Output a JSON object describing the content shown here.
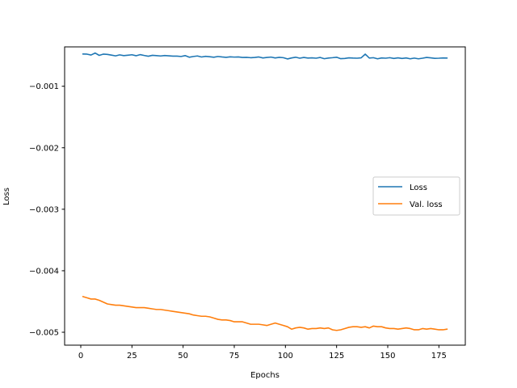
{
  "chart_data": {
    "type": "line",
    "title": "",
    "xlabel": "Epochs",
    "ylabel": "Loss",
    "xlim": [
      -7.9,
      187.9
    ],
    "ylim": [
      -0.00521,
      -0.00036
    ],
    "xticks": [
      0,
      25,
      50,
      75,
      100,
      125,
      150,
      175
    ],
    "xtick_labels": [
      "0",
      "25",
      "50",
      "75",
      "100",
      "125",
      "150",
      "175"
    ],
    "yticks": [
      -0.001,
      -0.002,
      -0.003,
      -0.004,
      -0.005
    ],
    "ytick_labels": [
      "−0.001",
      "−0.002",
      "−0.003",
      "−0.004",
      "−0.005"
    ],
    "grid": false,
    "legend_position": "center-right",
    "series": [
      {
        "name": "Loss",
        "color": "#1f77b4",
        "x": [
          1,
          3,
          5,
          7,
          9,
          11,
          13,
          15,
          17,
          19,
          21,
          23,
          25,
          27,
          29,
          31,
          33,
          35,
          37,
          39,
          41,
          43,
          45,
          47,
          49,
          51,
          53,
          55,
          57,
          59,
          61,
          63,
          65,
          67,
          69,
          71,
          73,
          75,
          77,
          79,
          81,
          83,
          85,
          87,
          89,
          91,
          93,
          95,
          97,
          99,
          101,
          103,
          105,
          107,
          109,
          111,
          113,
          115,
          117,
          119,
          121,
          123,
          125,
          127,
          129,
          131,
          133,
          135,
          137,
          139,
          141,
          143,
          145,
          147,
          149,
          151,
          153,
          155,
          157,
          159,
          161,
          163,
          165,
          167,
          169,
          171,
          173,
          175,
          177,
          179
        ],
        "y": [
          -0.000476,
          -0.000478,
          -0.000492,
          -0.00046,
          -0.000498,
          -0.000478,
          -0.000482,
          -0.000494,
          -0.000506,
          -0.00049,
          -0.000502,
          -0.000495,
          -0.000488,
          -0.000504,
          -0.000486,
          -0.0005,
          -0.000512,
          -0.000497,
          -0.000502,
          -0.000508,
          -0.0005,
          -0.000505,
          -0.00051,
          -0.00051,
          -0.000516,
          -0.000502,
          -0.000528,
          -0.000516,
          -0.000508,
          -0.000524,
          -0.000514,
          -0.00052,
          -0.000528,
          -0.000516,
          -0.000524,
          -0.00053,
          -0.000522,
          -0.000526,
          -0.000524,
          -0.000532,
          -0.00053,
          -0.000536,
          -0.000532,
          -0.000524,
          -0.00054,
          -0.000532,
          -0.000526,
          -0.00054,
          -0.00053,
          -0.000536,
          -0.000556,
          -0.00054,
          -0.000528,
          -0.000544,
          -0.000532,
          -0.000542,
          -0.000538,
          -0.000544,
          -0.000532,
          -0.000552,
          -0.000542,
          -0.000536,
          -0.000528,
          -0.000552,
          -0.000548,
          -0.000538,
          -0.000542,
          -0.000544,
          -0.000538,
          -0.000478,
          -0.000542,
          -0.000536,
          -0.000554,
          -0.00054,
          -0.000544,
          -0.000536,
          -0.000548,
          -0.000538,
          -0.000548,
          -0.00054,
          -0.000554,
          -0.000542,
          -0.000554,
          -0.000544,
          -0.000532,
          -0.000538,
          -0.000546,
          -0.000544,
          -0.00054,
          -0.000542
        ]
      },
      {
        "name": "Val. loss",
        "color": "#ff7f0e",
        "x": [
          1,
          3,
          5,
          7,
          9,
          11,
          13,
          15,
          17,
          19,
          21,
          23,
          25,
          27,
          29,
          31,
          33,
          35,
          37,
          39,
          41,
          43,
          45,
          47,
          49,
          51,
          53,
          55,
          57,
          59,
          61,
          63,
          65,
          67,
          69,
          71,
          73,
          75,
          77,
          79,
          81,
          83,
          85,
          87,
          89,
          91,
          93,
          95,
          97,
          99,
          101,
          103,
          105,
          107,
          109,
          111,
          113,
          115,
          117,
          119,
          121,
          123,
          125,
          127,
          129,
          131,
          133,
          135,
          137,
          139,
          141,
          143,
          145,
          147,
          149,
          151,
          153,
          155,
          157,
          159,
          161,
          163,
          165,
          167,
          169,
          171,
          173,
          175,
          177,
          179
        ],
        "y": [
          -0.00442,
          -0.00444,
          -0.00446,
          -0.00446,
          -0.00448,
          -0.00451,
          -0.00454,
          -0.00455,
          -0.00456,
          -0.00456,
          -0.00457,
          -0.00458,
          -0.00459,
          -0.0046,
          -0.0046,
          -0.0046,
          -0.00461,
          -0.00462,
          -0.00463,
          -0.00463,
          -0.00464,
          -0.00465,
          -0.00466,
          -0.00467,
          -0.00468,
          -0.00469,
          -0.0047,
          -0.00472,
          -0.00473,
          -0.00474,
          -0.00474,
          -0.00475,
          -0.00477,
          -0.00479,
          -0.0048,
          -0.0048,
          -0.00481,
          -0.00483,
          -0.00483,
          -0.00483,
          -0.00485,
          -0.00487,
          -0.00487,
          -0.00487,
          -0.00488,
          -0.00489,
          -0.00487,
          -0.00485,
          -0.00487,
          -0.00489,
          -0.00491,
          -0.00495,
          -0.00493,
          -0.00492,
          -0.00493,
          -0.00495,
          -0.00494,
          -0.00494,
          -0.00493,
          -0.00494,
          -0.00493,
          -0.00496,
          -0.00497,
          -0.00496,
          -0.00494,
          -0.00492,
          -0.00491,
          -0.00491,
          -0.00492,
          -0.00491,
          -0.00493,
          -0.0049,
          -0.00491,
          -0.00491,
          -0.00493,
          -0.00494,
          -0.00494,
          -0.00495,
          -0.00494,
          -0.00493,
          -0.00494,
          -0.00496,
          -0.00496,
          -0.00494,
          -0.00495,
          -0.00494,
          -0.00495,
          -0.00496,
          -0.00496,
          -0.00495
        ]
      }
    ]
  }
}
